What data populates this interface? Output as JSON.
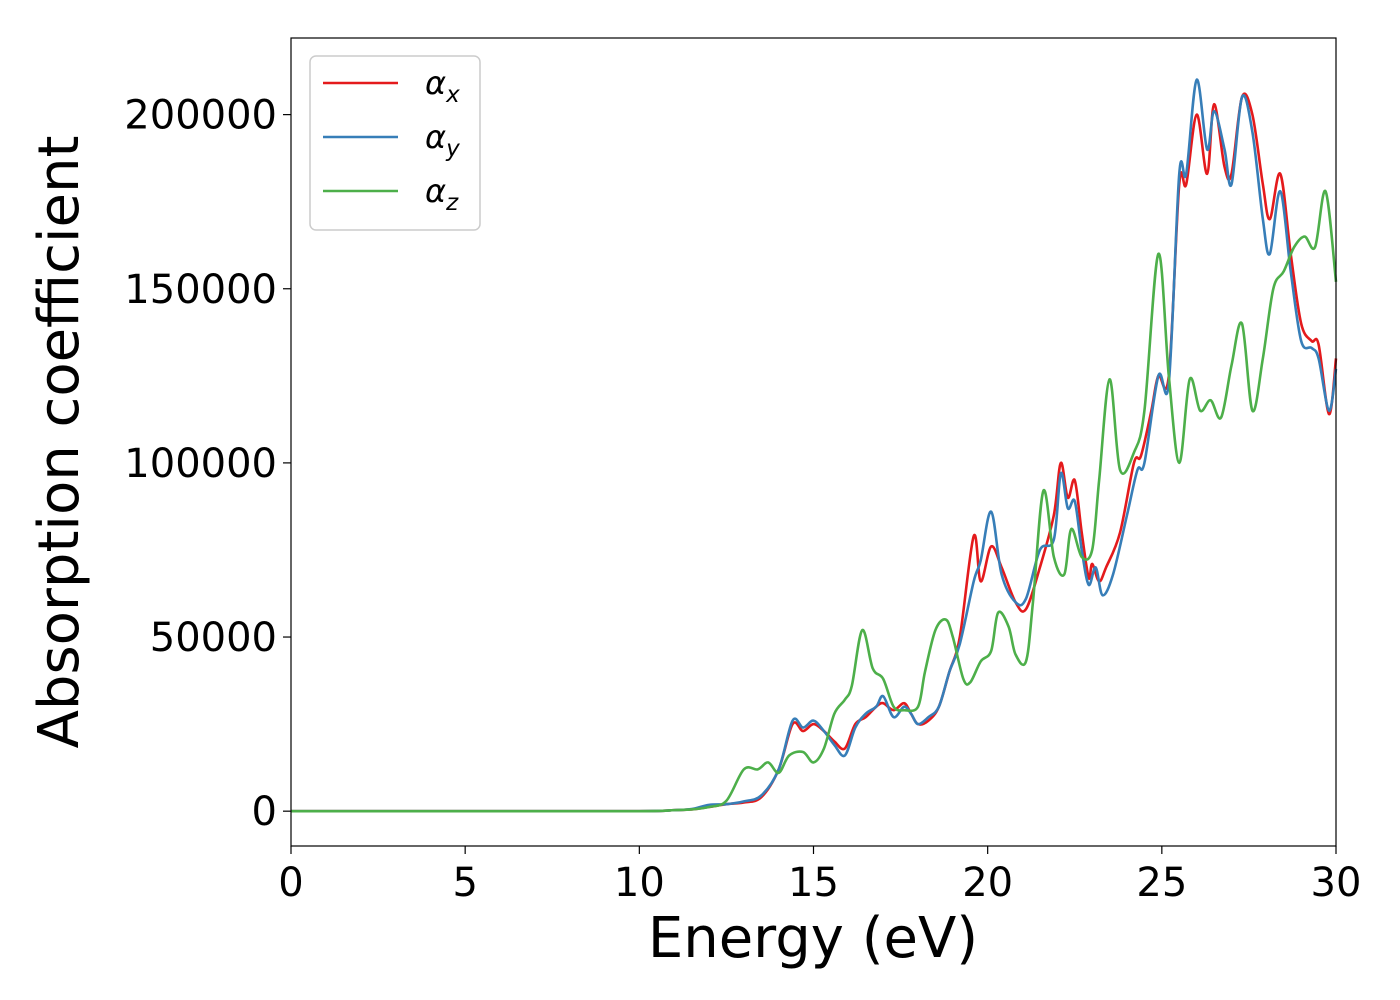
{
  "chart_data": {
    "type": "line",
    "xlabel": "Energy (eV)",
    "ylabel": "Absorption coefficient",
    "xlim": [
      0,
      30
    ],
    "ylim": [
      -10000,
      222000
    ],
    "xticks": [
      0,
      5,
      10,
      15,
      20,
      25,
      30
    ],
    "xtick_labels": [
      "0",
      "5",
      "10",
      "15",
      "20",
      "25",
      "30"
    ],
    "yticks": [
      0,
      50000,
      100000,
      150000,
      200000
    ],
    "ytick_labels": [
      "0",
      "50000",
      "100000",
      "150000",
      "200000"
    ],
    "grid": false,
    "legend": "top-left",
    "series": [
      {
        "name": "α",
        "sub": "x",
        "color": "#e41a1c",
        "points": [
          [
            0,
            0
          ],
          [
            5,
            0
          ],
          [
            10,
            0
          ],
          [
            11,
            300
          ],
          [
            11.5,
            500
          ],
          [
            12,
            1200
          ],
          [
            12.5,
            2000
          ],
          [
            13,
            2500
          ],
          [
            13.5,
            4000
          ],
          [
            14,
            12000
          ],
          [
            14.4,
            25000
          ],
          [
            14.7,
            23000
          ],
          [
            15,
            25000
          ],
          [
            15.3,
            23000
          ],
          [
            15.6,
            20000
          ],
          [
            15.9,
            18000
          ],
          [
            16.2,
            25000
          ],
          [
            16.5,
            27000
          ],
          [
            16.8,
            30000
          ],
          [
            17,
            31000
          ],
          [
            17.3,
            29000
          ],
          [
            17.6,
            31000
          ],
          [
            17.8,
            28000
          ],
          [
            18,
            25000
          ],
          [
            18.3,
            26000
          ],
          [
            18.6,
            30000
          ],
          [
            18.9,
            40000
          ],
          [
            19.2,
            50000
          ],
          [
            19.6,
            79000
          ],
          [
            19.8,
            66000
          ],
          [
            20.1,
            76000
          ],
          [
            20.4,
            70000
          ],
          [
            20.8,
            60000
          ],
          [
            21.1,
            58000
          ],
          [
            21.5,
            70000
          ],
          [
            21.9,
            85000
          ],
          [
            22.1,
            100000
          ],
          [
            22.3,
            90000
          ],
          [
            22.5,
            95000
          ],
          [
            22.7,
            80000
          ],
          [
            22.9,
            67000
          ],
          [
            23,
            71000
          ],
          [
            23.2,
            66000
          ],
          [
            23.4,
            70000
          ],
          [
            23.8,
            80000
          ],
          [
            24.2,
            100000
          ],
          [
            24.4,
            102000
          ],
          [
            24.7,
            115000
          ],
          [
            24.9,
            125000
          ],
          [
            25.2,
            125000
          ],
          [
            25.5,
            180000
          ],
          [
            25.7,
            180000
          ],
          [
            26,
            200000
          ],
          [
            26.3,
            183000
          ],
          [
            26.5,
            203000
          ],
          [
            26.8,
            185000
          ],
          [
            27,
            183000
          ],
          [
            27.3,
            205000
          ],
          [
            27.6,
            200000
          ],
          [
            27.9,
            180000
          ],
          [
            28.1,
            170000
          ],
          [
            28.4,
            183000
          ],
          [
            28.7,
            160000
          ],
          [
            29,
            140000
          ],
          [
            29.3,
            135000
          ],
          [
            29.5,
            134000
          ],
          [
            29.8,
            114000
          ],
          [
            30,
            130000
          ]
        ]
      },
      {
        "name": "α",
        "sub": "y",
        "color": "#377eb8",
        "points": [
          [
            0,
            0
          ],
          [
            5,
            0
          ],
          [
            10,
            0
          ],
          [
            11,
            300
          ],
          [
            11.5,
            600
          ],
          [
            12,
            1800
          ],
          [
            12.5,
            2000
          ],
          [
            13,
            2800
          ],
          [
            13.5,
            4500
          ],
          [
            14,
            12000
          ],
          [
            14.4,
            26000
          ],
          [
            14.7,
            24000
          ],
          [
            15,
            26000
          ],
          [
            15.3,
            23000
          ],
          [
            15.6,
            19000
          ],
          [
            15.9,
            16000
          ],
          [
            16.2,
            24000
          ],
          [
            16.5,
            28000
          ],
          [
            16.8,
            30000
          ],
          [
            17,
            33000
          ],
          [
            17.3,
            27000
          ],
          [
            17.6,
            30000
          ],
          [
            17.8,
            28000
          ],
          [
            18,
            25000
          ],
          [
            18.3,
            27000
          ],
          [
            18.6,
            30000
          ],
          [
            18.9,
            40000
          ],
          [
            19.2,
            48000
          ],
          [
            19.6,
            66000
          ],
          [
            19.8,
            72000
          ],
          [
            20.1,
            86000
          ],
          [
            20.4,
            68000
          ],
          [
            20.8,
            60000
          ],
          [
            21.1,
            61000
          ],
          [
            21.5,
            75000
          ],
          [
            21.9,
            78000
          ],
          [
            22.1,
            97000
          ],
          [
            22.3,
            87000
          ],
          [
            22.5,
            89000
          ],
          [
            22.7,
            75000
          ],
          [
            22.9,
            65000
          ],
          [
            23.1,
            70000
          ],
          [
            23.3,
            62000
          ],
          [
            23.6,
            68000
          ],
          [
            24,
            85000
          ],
          [
            24.3,
            98000
          ],
          [
            24.5,
            100000
          ],
          [
            24.9,
            125000
          ],
          [
            25.2,
            123000
          ],
          [
            25.5,
            183000
          ],
          [
            25.7,
            183000
          ],
          [
            26,
            210000
          ],
          [
            26.3,
            190000
          ],
          [
            26.5,
            201000
          ],
          [
            26.8,
            190000
          ],
          [
            27,
            180000
          ],
          [
            27.3,
            205000
          ],
          [
            27.6,
            195000
          ],
          [
            27.9,
            170000
          ],
          [
            28.1,
            160000
          ],
          [
            28.4,
            178000
          ],
          [
            28.7,
            155000
          ],
          [
            29,
            135000
          ],
          [
            29.3,
            133000
          ],
          [
            29.5,
            130000
          ],
          [
            29.8,
            115000
          ],
          [
            30,
            127000
          ]
        ]
      },
      {
        "name": "α",
        "sub": "z",
        "color": "#4daf4a",
        "points": [
          [
            0,
            0
          ],
          [
            5,
            0
          ],
          [
            10,
            0
          ],
          [
            11,
            300
          ],
          [
            11.5,
            500
          ],
          [
            12,
            1200
          ],
          [
            12.5,
            3000
          ],
          [
            13,
            12000
          ],
          [
            13.4,
            12000
          ],
          [
            13.7,
            14000
          ],
          [
            14,
            11000
          ],
          [
            14.3,
            16000
          ],
          [
            14.7,
            17000
          ],
          [
            15,
            14000
          ],
          [
            15.3,
            18000
          ],
          [
            15.6,
            28000
          ],
          [
            15.9,
            32000
          ],
          [
            16.1,
            36000
          ],
          [
            16.4,
            52000
          ],
          [
            16.7,
            41000
          ],
          [
            17,
            38000
          ],
          [
            17.3,
            30000
          ],
          [
            17.6,
            29000
          ],
          [
            18,
            30000
          ],
          [
            18.2,
            40000
          ],
          [
            18.5,
            52000
          ],
          [
            18.8,
            55000
          ],
          [
            19,
            50000
          ],
          [
            19.3,
            38000
          ],
          [
            19.5,
            37000
          ],
          [
            19.8,
            43000
          ],
          [
            20.1,
            46000
          ],
          [
            20.3,
            57000
          ],
          [
            20.6,
            53000
          ],
          [
            20.8,
            45000
          ],
          [
            21.1,
            43000
          ],
          [
            21.3,
            60000
          ],
          [
            21.6,
            92000
          ],
          [
            21.9,
            73000
          ],
          [
            22.2,
            68000
          ],
          [
            22.4,
            81000
          ],
          [
            22.7,
            73000
          ],
          [
            23,
            75000
          ],
          [
            23.2,
            95000
          ],
          [
            23.5,
            124000
          ],
          [
            23.8,
            98000
          ],
          [
            24.2,
            103000
          ],
          [
            24.5,
            115000
          ],
          [
            24.9,
            160000
          ],
          [
            25.2,
            125000
          ],
          [
            25.5,
            100000
          ],
          [
            25.8,
            124000
          ],
          [
            26.1,
            115000
          ],
          [
            26.4,
            118000
          ],
          [
            26.7,
            113000
          ],
          [
            27,
            128000
          ],
          [
            27.3,
            140000
          ],
          [
            27.6,
            115000
          ],
          [
            27.9,
            130000
          ],
          [
            28.2,
            150000
          ],
          [
            28.5,
            155000
          ],
          [
            28.8,
            162000
          ],
          [
            29.1,
            165000
          ],
          [
            29.4,
            162000
          ],
          [
            29.7,
            178000
          ],
          [
            30,
            152000
          ]
        ]
      }
    ]
  }
}
